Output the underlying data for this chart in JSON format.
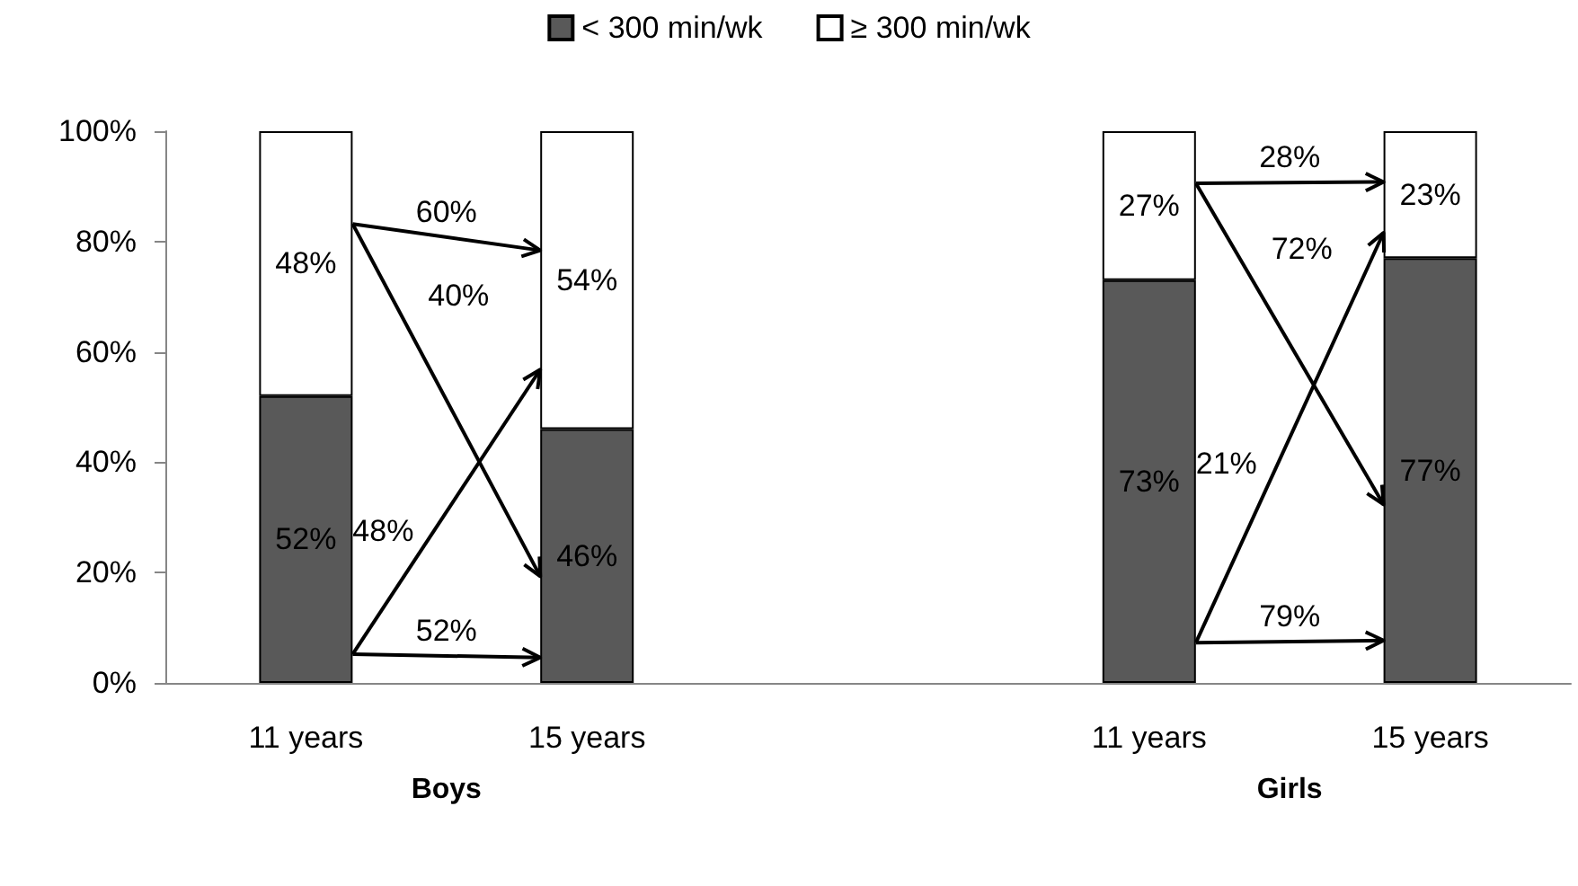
{
  "chart_data": {
    "type": "bar",
    "stacked": true,
    "legend": "top",
    "grid": false,
    "categories": [
      "11 years",
      "15 years",
      null,
      "11 years",
      "15 years"
    ],
    "series": [
      {
        "name": "< 300 min/wk",
        "color": "#595959",
        "values": [
          52,
          46,
          null,
          73,
          77
        ],
        "value_labels": [
          "52%",
          "46%",
          null,
          "73%",
          "77%"
        ]
      },
      {
        "name": "≥ 300 min/wk",
        "color": "#ffffff",
        "values": [
          48,
          54,
          null,
          27,
          23
        ],
        "value_labels": [
          "48%",
          "54%",
          null,
          "27%",
          "23%"
        ]
      }
    ],
    "ylim": [
      0,
      100
    ],
    "yticks": [
      {
        "value": 0,
        "label": "0%"
      },
      {
        "value": 20,
        "label": "20%"
      },
      {
        "value": 40,
        "label": "40%"
      },
      {
        "value": 60,
        "label": "60%"
      },
      {
        "value": 80,
        "label": "80%"
      },
      {
        "value": 100,
        "label": "100%"
      }
    ],
    "annotations": [
      "Boys",
      "Girls",
      "60%",
      "40%",
      "48%",
      "52%",
      "28%",
      "72%",
      "21%",
      "79%"
    ]
  }
}
